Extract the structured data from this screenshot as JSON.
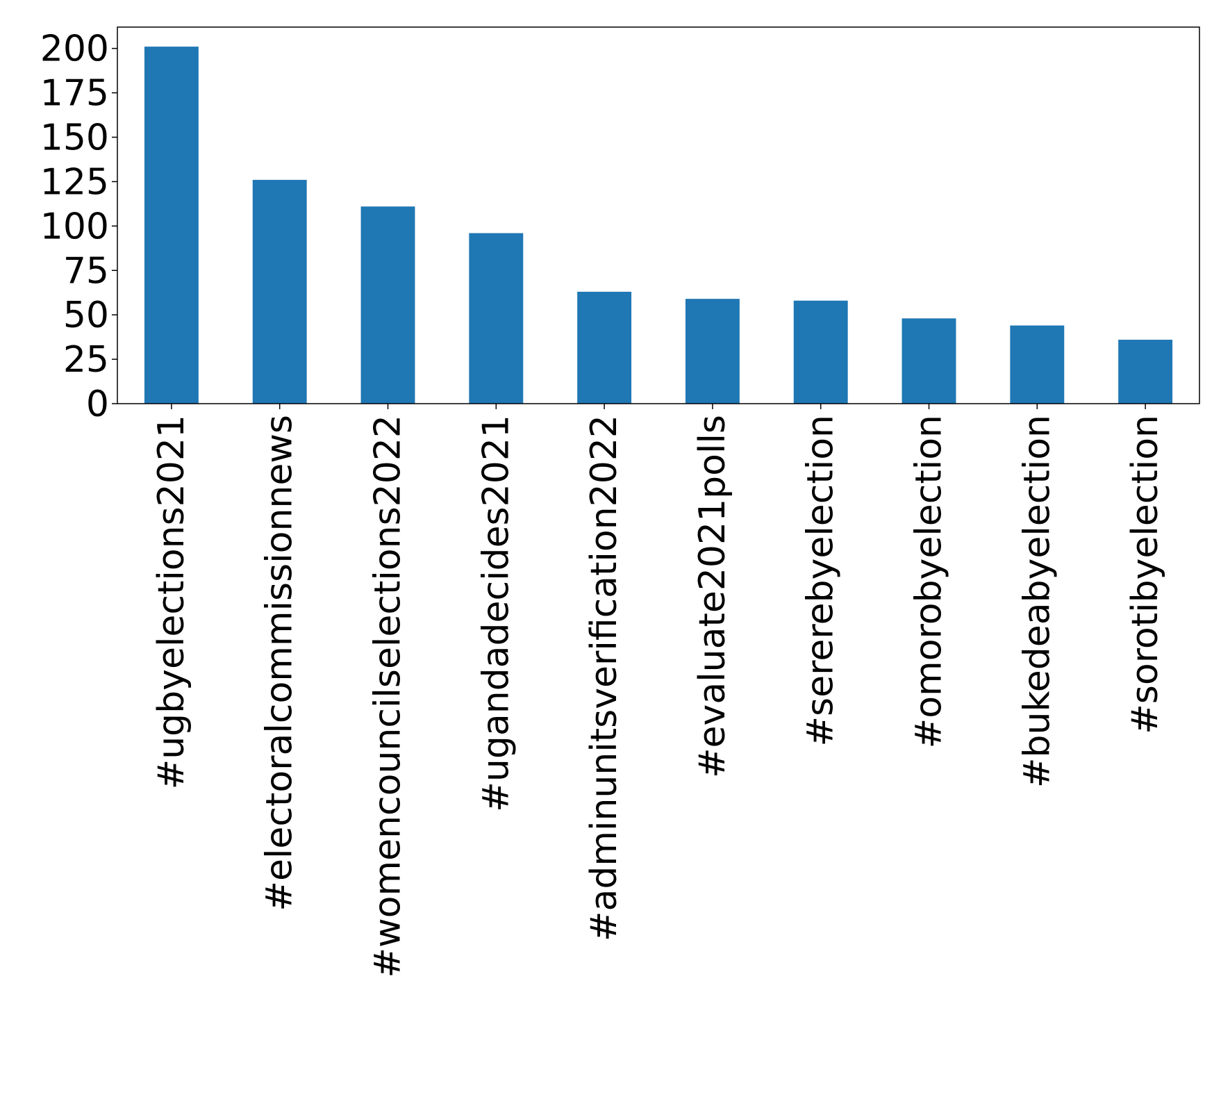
{
  "chart_data": {
    "type": "bar",
    "title": "",
    "xlabel": "",
    "ylabel": "",
    "categories": [
      "#ugbyelections2021",
      "#electoralcommissionnews",
      "#womencouncilselections2022",
      "#ugandadecides2021",
      "#adminunitsverification2022",
      "#evaluate2021polls",
      "#sererebyelection",
      "#omorobyelection",
      "#bukedeabyelection",
      "#sorotibyelection"
    ],
    "values": [
      201,
      126,
      111,
      96,
      63,
      59,
      58,
      48,
      44,
      36
    ],
    "ylim": [
      0,
      212
    ],
    "yticks": [
      0,
      25,
      50,
      75,
      100,
      125,
      150,
      175,
      200
    ],
    "ytick_labels": [
      "0",
      "25",
      "50",
      "75",
      "100",
      "125",
      "150",
      "175",
      "200"
    ],
    "grid": false,
    "legend": "none",
    "bar_color": "#1f77b4"
  }
}
